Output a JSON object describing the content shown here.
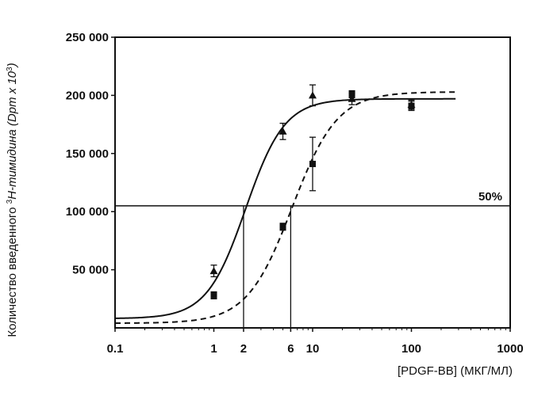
{
  "chart_data": {
    "type": "scatter",
    "title": "",
    "xlabel": "[PDGF-BB] (МКГ/МЛ)",
    "ylabel_parts": {
      "pre": "Количество введенного ",
      "sup1": "3",
      "mid": "Н-тимидина (Dpm x 10",
      "sup2": "3",
      "post": ")"
    },
    "x_scale": "log",
    "xlim": [
      0.1,
      1000
    ],
    "ylim": [
      0,
      250000
    ],
    "x_ticks": [
      {
        "value": 0.1,
        "label": "0.1"
      },
      {
        "value": 1,
        "label": "1"
      },
      {
        "value": 2,
        "label": "2"
      },
      {
        "value": 6,
        "label": "6"
      },
      {
        "value": 10,
        "label": "10"
      },
      {
        "value": 100,
        "label": "100"
      },
      {
        "value": 1000,
        "label": "1000"
      }
    ],
    "y_ticks": [
      {
        "value": 50000,
        "label": "50 000"
      },
      {
        "value": 100000,
        "label": "100 000"
      },
      {
        "value": 150000,
        "label": "150 000"
      },
      {
        "value": 200000,
        "label": "200 000"
      },
      {
        "value": 250000,
        "label": "250 000"
      }
    ],
    "grid": false,
    "reference_line": {
      "y": 105000,
      "label": "50%"
    },
    "drop_lines_x": [
      2,
      6
    ],
    "series": [
      {
        "marker": "triangle",
        "line_style": "solid",
        "points": [
          {
            "x": 1,
            "y": 49000,
            "err": 5000
          },
          {
            "x": 5,
            "y": 169000,
            "err": 7000
          },
          {
            "x": 10,
            "y": 200000,
            "err": 9000
          },
          {
            "x": 25,
            "y": 197000,
            "err": 5000
          },
          {
            "x": 100,
            "y": 192000,
            "err": 4000
          }
        ],
        "curve": {
          "bottom": 8000,
          "top": 197000,
          "ec50": 2.1,
          "hill": 2.2
        }
      },
      {
        "marker": "square",
        "line_style": "dashed",
        "points": [
          {
            "x": 1,
            "y": 28000,
            "err": 3000
          },
          {
            "x": 5,
            "y": 87000,
            "err": 3000
          },
          {
            "x": 10,
            "y": 141000,
            "err": 23000
          },
          {
            "x": 25,
            "y": 201000,
            "err": 3000
          },
          {
            "x": 100,
            "y": 191000,
            "err": 4000
          }
        ],
        "curve": {
          "bottom": 4000,
          "top": 203000,
          "ec50": 6.2,
          "hill": 1.9
        }
      }
    ]
  }
}
